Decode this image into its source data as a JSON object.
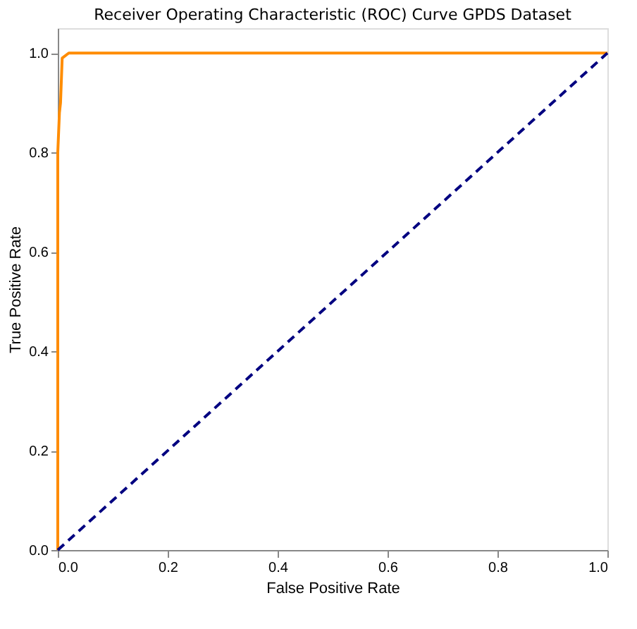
{
  "chart_data": {
    "type": "line",
    "title": "Receiver Operating Characteristic (ROC) Curve GPDS Dataset",
    "xlabel": "False Positive Rate",
    "ylabel": "True Positive Rate",
    "xlim": [
      0,
      1
    ],
    "ylim": [
      0,
      1.05
    ],
    "xticks": [
      {
        "value": 0,
        "label": "0.0"
      },
      0.2,
      0.4,
      0.6,
      0.8,
      {
        "value": 1,
        "label": "1.0"
      }
    ],
    "yticks": [
      {
        "value": 0,
        "label": "0.0"
      },
      0.2,
      0.4,
      0.6,
      0.8,
      {
        "value": 1,
        "label": "1.0"
      }
    ],
    "grid": false,
    "marker": "none",
    "series": [
      {
        "color": "#ff8c00",
        "line_style": "solid",
        "x": [
          0,
          0,
          0.003,
          0.005,
          0.008,
          0.02,
          1
        ],
        "values": [
          0,
          0.8,
          0.88,
          0.9,
          0.99,
          1.0,
          1.0
        ]
      },
      {
        "color": "#000080",
        "line_style": "dashed",
        "x": [
          0,
          1
        ],
        "values": [
          0,
          1
        ]
      }
    ]
  }
}
